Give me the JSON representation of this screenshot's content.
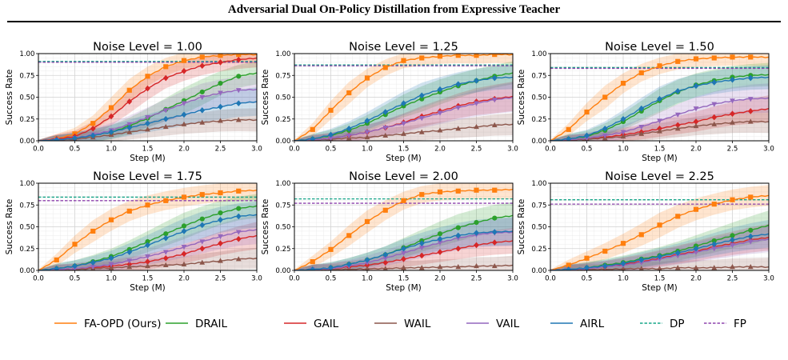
{
  "header": {
    "title": "Adversarial Dual On-Policy Distillation from Expressive Teacher"
  },
  "series_styles": [
    {
      "name": "FA-OPD (Ours)",
      "color": "#ff7f0e",
      "marker": "square",
      "dash": false
    },
    {
      "name": "DRAIL",
      "color": "#2ca02c",
      "marker": "circle",
      "dash": false
    },
    {
      "name": "GAIL",
      "color": "#d62728",
      "marker": "diamond",
      "dash": false
    },
    {
      "name": "WAIL",
      "color": "#8c564b",
      "marker": "triangle-up",
      "dash": false
    },
    {
      "name": "VAIL",
      "color": "#9467bd",
      "marker": "triangle-down",
      "dash": false
    },
    {
      "name": "AIRL",
      "color": "#1f77b4",
      "marker": "diamond",
      "dash": false
    },
    {
      "name": "DP",
      "color": "#17a589",
      "marker": "none",
      "dash": true
    },
    {
      "name": "FP",
      "color": "#8e44ad",
      "marker": "none",
      "dash": true
    }
  ],
  "chart_data": [
    {
      "type": "line",
      "title": "Noise Level = 1.00",
      "xlabel": "Step (M)",
      "ylabel": "Success Rate",
      "xlim": [
        0,
        3
      ],
      "ylim": [
        0,
        1
      ],
      "xticks": [
        "0.0",
        "0.5",
        "1.0",
        "1.5",
        "2.0",
        "2.5",
        "3.0"
      ],
      "yticks": [
        "0.00",
        "0.25",
        "0.50",
        "0.75",
        "1.00"
      ],
      "x": [
        0,
        0.25,
        0.5,
        0.75,
        1.0,
        1.25,
        1.5,
        1.75,
        2.0,
        2.25,
        2.5,
        2.75,
        3.0
      ],
      "series": [
        {
          "name": "FA-OPD (Ours)",
          "values": [
            0.0,
            0.02,
            0.08,
            0.2,
            0.38,
            0.58,
            0.74,
            0.85,
            0.92,
            0.96,
            0.98,
            0.99,
            0.99
          ]
        },
        {
          "name": "DRAIL",
          "values": [
            0.0,
            0.01,
            0.03,
            0.06,
            0.1,
            0.17,
            0.26,
            0.36,
            0.46,
            0.56,
            0.66,
            0.74,
            0.78
          ]
        },
        {
          "name": "GAIL",
          "values": [
            0.0,
            0.02,
            0.05,
            0.14,
            0.28,
            0.45,
            0.6,
            0.72,
            0.8,
            0.86,
            0.9,
            0.93,
            0.95
          ]
        },
        {
          "name": "WAIL",
          "values": [
            0.0,
            0.01,
            0.02,
            0.04,
            0.07,
            0.1,
            0.13,
            0.16,
            0.19,
            0.21,
            0.23,
            0.24,
            0.24
          ]
        },
        {
          "name": "VAIL",
          "values": [
            0.0,
            0.01,
            0.03,
            0.07,
            0.12,
            0.19,
            0.27,
            0.35,
            0.43,
            0.5,
            0.55,
            0.58,
            0.59
          ]
        },
        {
          "name": "AIRL",
          "values": [
            0.0,
            0.01,
            0.03,
            0.06,
            0.1,
            0.15,
            0.2,
            0.25,
            0.3,
            0.35,
            0.39,
            0.43,
            0.45
          ]
        },
        {
          "name": "DP",
          "constant": 0.91
        },
        {
          "name": "FP",
          "constant": 0.9
        }
      ]
    },
    {
      "type": "line",
      "title": "Noise Level = 1.25",
      "xlabel": "Step (M)",
      "ylabel": "Success Rate",
      "xlim": [
        0,
        3
      ],
      "ylim": [
        0,
        1
      ],
      "xticks": [
        "0.0",
        "0.5",
        "1.0",
        "1.5",
        "2.0",
        "2.5",
        "3.0"
      ],
      "yticks": [
        "0.00",
        "0.25",
        "0.50",
        "0.75",
        "1.00"
      ],
      "x": [
        0,
        0.25,
        0.5,
        0.75,
        1.0,
        1.25,
        1.5,
        1.75,
        2.0,
        2.25,
        2.5,
        2.75,
        3.0
      ],
      "series": [
        {
          "name": "FA-OPD (Ours)",
          "values": [
            0.0,
            0.13,
            0.35,
            0.55,
            0.72,
            0.84,
            0.92,
            0.95,
            0.97,
            0.98,
            0.98,
            0.99,
            0.99
          ]
        },
        {
          "name": "DRAIL",
          "values": [
            0.0,
            0.02,
            0.06,
            0.12,
            0.2,
            0.3,
            0.4,
            0.48,
            0.56,
            0.63,
            0.69,
            0.74,
            0.78
          ]
        },
        {
          "name": "GAIL",
          "values": [
            0.0,
            0.01,
            0.03,
            0.06,
            0.1,
            0.15,
            0.21,
            0.28,
            0.34,
            0.4,
            0.45,
            0.48,
            0.51
          ]
        },
        {
          "name": "WAIL",
          "values": [
            0.0,
            0.01,
            0.02,
            0.03,
            0.04,
            0.06,
            0.08,
            0.1,
            0.12,
            0.14,
            0.16,
            0.18,
            0.19
          ]
        },
        {
          "name": "VAIL",
          "values": [
            0.0,
            0.01,
            0.03,
            0.06,
            0.1,
            0.15,
            0.2,
            0.26,
            0.32,
            0.38,
            0.43,
            0.47,
            0.5
          ]
        },
        {
          "name": "AIRL",
          "values": [
            0.0,
            0.02,
            0.07,
            0.14,
            0.23,
            0.33,
            0.43,
            0.52,
            0.59,
            0.65,
            0.69,
            0.72,
            0.73
          ]
        },
        {
          "name": "DP",
          "constant": 0.87
        },
        {
          "name": "FP",
          "constant": 0.86
        }
      ]
    },
    {
      "type": "line",
      "title": "Noise Level = 1.50",
      "xlabel": "Step (M)",
      "ylabel": "Success Rate",
      "xlim": [
        0,
        3
      ],
      "ylim": [
        0,
        1
      ],
      "xticks": [
        "0.0",
        "0.5",
        "1.0",
        "1.5",
        "2.0",
        "2.5",
        "3.0"
      ],
      "yticks": [
        "0.00",
        "0.25",
        "0.50",
        "0.75",
        "1.00"
      ],
      "x": [
        0,
        0.25,
        0.5,
        0.75,
        1.0,
        1.25,
        1.5,
        1.75,
        2.0,
        2.25,
        2.5,
        2.75,
        3.0
      ],
      "series": [
        {
          "name": "FA-OPD (Ours)",
          "values": [
            0.0,
            0.13,
            0.33,
            0.5,
            0.66,
            0.78,
            0.86,
            0.91,
            0.94,
            0.95,
            0.96,
            0.96,
            0.96
          ]
        },
        {
          "name": "DRAIL",
          "values": [
            0.0,
            0.02,
            0.05,
            0.12,
            0.22,
            0.34,
            0.46,
            0.56,
            0.64,
            0.69,
            0.73,
            0.75,
            0.76
          ]
        },
        {
          "name": "GAIL",
          "values": [
            0.0,
            0.01,
            0.02,
            0.04,
            0.07,
            0.1,
            0.14,
            0.18,
            0.22,
            0.27,
            0.31,
            0.34,
            0.37
          ]
        },
        {
          "name": "WAIL",
          "values": [
            0.0,
            0.01,
            0.02,
            0.03,
            0.05,
            0.08,
            0.11,
            0.14,
            0.17,
            0.19,
            0.21,
            0.22,
            0.22
          ]
        },
        {
          "name": "VAIL",
          "values": [
            0.0,
            0.01,
            0.03,
            0.06,
            0.1,
            0.16,
            0.23,
            0.3,
            0.37,
            0.42,
            0.46,
            0.48,
            0.49
          ]
        },
        {
          "name": "AIRL",
          "values": [
            0.0,
            0.02,
            0.06,
            0.14,
            0.25,
            0.37,
            0.48,
            0.57,
            0.63,
            0.67,
            0.7,
            0.72,
            0.73
          ]
        },
        {
          "name": "DP",
          "constant": 0.84
        },
        {
          "name": "FP",
          "constant": 0.83
        }
      ]
    },
    {
      "type": "line",
      "title": "Noise Level = 1.75",
      "xlabel": "Step (M)",
      "ylabel": "Success Rate",
      "xlim": [
        0,
        3
      ],
      "ylim": [
        0,
        1
      ],
      "xticks": [
        "0.0",
        "0.5",
        "1.0",
        "1.5",
        "2.0",
        "2.5",
        "3.0"
      ],
      "yticks": [
        "0.00",
        "0.25",
        "0.50",
        "0.75",
        "1.00"
      ],
      "x": [
        0,
        0.25,
        0.5,
        0.75,
        1.0,
        1.25,
        1.5,
        1.75,
        2.0,
        2.25,
        2.5,
        2.75,
        3.0
      ],
      "series": [
        {
          "name": "FA-OPD (Ours)",
          "values": [
            0.0,
            0.12,
            0.3,
            0.45,
            0.58,
            0.68,
            0.75,
            0.8,
            0.84,
            0.87,
            0.89,
            0.91,
            0.92
          ]
        },
        {
          "name": "DRAIL",
          "values": [
            0.0,
            0.02,
            0.05,
            0.1,
            0.16,
            0.24,
            0.33,
            0.42,
            0.51,
            0.59,
            0.66,
            0.71,
            0.74
          ]
        },
        {
          "name": "GAIL",
          "values": [
            0.0,
            0.01,
            0.02,
            0.03,
            0.05,
            0.07,
            0.1,
            0.14,
            0.19,
            0.25,
            0.31,
            0.36,
            0.4
          ]
        },
        {
          "name": "WAIL",
          "values": [
            0.0,
            0.01,
            0.01,
            0.02,
            0.03,
            0.04,
            0.05,
            0.06,
            0.07,
            0.09,
            0.11,
            0.13,
            0.14
          ]
        },
        {
          "name": "VAIL",
          "values": [
            0.0,
            0.01,
            0.02,
            0.04,
            0.07,
            0.11,
            0.16,
            0.21,
            0.27,
            0.33,
            0.39,
            0.44,
            0.47
          ]
        },
        {
          "name": "AIRL",
          "values": [
            0.0,
            0.02,
            0.05,
            0.09,
            0.14,
            0.21,
            0.29,
            0.37,
            0.45,
            0.52,
            0.58,
            0.62,
            0.64
          ]
        },
        {
          "name": "DP",
          "constant": 0.84
        },
        {
          "name": "FP",
          "constant": 0.8
        }
      ]
    },
    {
      "type": "line",
      "title": "Noise Level = 2.00",
      "xlabel": "Step (M)",
      "ylabel": "Success Rate",
      "xlim": [
        0,
        3
      ],
      "ylim": [
        0,
        1
      ],
      "xticks": [
        "0.0",
        "0.5",
        "1.0",
        "1.5",
        "2.0",
        "2.5",
        "3.0"
      ],
      "yticks": [
        "0.00",
        "0.25",
        "0.50",
        "0.75",
        "1.00"
      ],
      "x": [
        0,
        0.25,
        0.5,
        0.75,
        1.0,
        1.25,
        1.5,
        1.75,
        2.0,
        2.25,
        2.5,
        2.75,
        3.0
      ],
      "series": [
        {
          "name": "FA-OPD (Ours)",
          "values": [
            0.0,
            0.1,
            0.24,
            0.4,
            0.56,
            0.69,
            0.8,
            0.87,
            0.9,
            0.91,
            0.92,
            0.92,
            0.93
          ]
        },
        {
          "name": "DRAIL",
          "values": [
            0.0,
            0.01,
            0.03,
            0.07,
            0.12,
            0.18,
            0.26,
            0.34,
            0.42,
            0.49,
            0.55,
            0.6,
            0.63
          ]
        },
        {
          "name": "GAIL",
          "values": [
            0.0,
            0.01,
            0.02,
            0.04,
            0.06,
            0.09,
            0.13,
            0.17,
            0.21,
            0.25,
            0.29,
            0.32,
            0.34
          ]
        },
        {
          "name": "WAIL",
          "values": [
            0.0,
            0.01,
            0.01,
            0.01,
            0.02,
            0.02,
            0.03,
            0.03,
            0.04,
            0.04,
            0.05,
            0.05,
            0.06
          ]
        },
        {
          "name": "VAIL",
          "values": [
            0.0,
            0.01,
            0.02,
            0.05,
            0.09,
            0.14,
            0.2,
            0.26,
            0.32,
            0.37,
            0.41,
            0.43,
            0.44
          ]
        },
        {
          "name": "AIRL",
          "values": [
            0.0,
            0.01,
            0.03,
            0.07,
            0.12,
            0.18,
            0.25,
            0.31,
            0.36,
            0.4,
            0.43,
            0.44,
            0.45
          ]
        },
        {
          "name": "DP",
          "constant": 0.82
        },
        {
          "name": "FP",
          "constant": 0.77
        }
      ]
    },
    {
      "type": "line",
      "title": "Noise Level = 2.25",
      "xlabel": "Step (M)",
      "ylabel": "Success Rate",
      "xlim": [
        0,
        3
      ],
      "ylim": [
        0,
        1
      ],
      "xticks": [
        "0.0",
        "0.5",
        "1.0",
        "1.5",
        "2.0",
        "2.5",
        "3.0"
      ],
      "yticks": [
        "0.00",
        "0.25",
        "0.50",
        "0.75",
        "1.00"
      ],
      "x": [
        0,
        0.25,
        0.5,
        0.75,
        1.0,
        1.25,
        1.5,
        1.75,
        2.0,
        2.25,
        2.5,
        2.75,
        3.0
      ],
      "series": [
        {
          "name": "FA-OPD (Ours)",
          "values": [
            0.0,
            0.06,
            0.14,
            0.22,
            0.31,
            0.41,
            0.52,
            0.62,
            0.7,
            0.76,
            0.81,
            0.84,
            0.86
          ]
        },
        {
          "name": "DRAIL",
          "values": [
            0.0,
            0.01,
            0.03,
            0.06,
            0.09,
            0.13,
            0.17,
            0.22,
            0.28,
            0.34,
            0.4,
            0.46,
            0.52
          ]
        },
        {
          "name": "GAIL",
          "values": [
            0.0,
            0.01,
            0.02,
            0.04,
            0.07,
            0.1,
            0.14,
            0.18,
            0.22,
            0.27,
            0.31,
            0.35,
            0.38
          ]
        },
        {
          "name": "WAIL",
          "values": [
            0.0,
            0.01,
            0.01,
            0.01,
            0.02,
            0.02,
            0.02,
            0.03,
            0.03,
            0.03,
            0.04,
            0.04,
            0.04
          ]
        },
        {
          "name": "VAIL",
          "values": [
            0.0,
            0.01,
            0.02,
            0.04,
            0.06,
            0.09,
            0.13,
            0.17,
            0.21,
            0.25,
            0.29,
            0.33,
            0.36
          ]
        },
        {
          "name": "AIRL",
          "values": [
            0.0,
            0.01,
            0.03,
            0.05,
            0.08,
            0.12,
            0.16,
            0.2,
            0.25,
            0.3,
            0.35,
            0.39,
            0.42
          ]
        },
        {
          "name": "DP",
          "constant": 0.81
        },
        {
          "name": "FP",
          "constant": 0.76
        }
      ]
    }
  ]
}
